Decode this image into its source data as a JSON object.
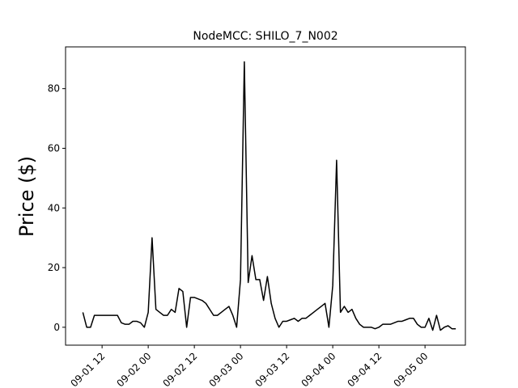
{
  "chart_data": {
    "type": "line",
    "title": "NodeMCC: SHILO_7_N002",
    "y_label": "Price ($)",
    "x": [
      "09-01 07",
      "09-01 08",
      "09-01 09",
      "09-01 10",
      "09-01 11",
      "09-01 12",
      "09-01 13",
      "09-01 14",
      "09-01 15",
      "09-01 16",
      "09-01 17",
      "09-01 18",
      "09-01 19",
      "09-01 20",
      "09-01 21",
      "09-01 22",
      "09-01 23",
      "09-02 00",
      "09-02 01",
      "09-02 02",
      "09-02 03",
      "09-02 04",
      "09-02 05",
      "09-02 06",
      "09-02 07",
      "09-02 08",
      "09-02 09",
      "09-02 10",
      "09-02 11",
      "09-02 12",
      "09-02 13",
      "09-02 14",
      "09-02 15",
      "09-02 16",
      "09-02 17",
      "09-02 18",
      "09-02 19",
      "09-02 20",
      "09-02 21",
      "09-02 22",
      "09-02 23",
      "09-03 00",
      "09-03 01",
      "09-03 02",
      "09-03 03",
      "09-03 04",
      "09-03 05",
      "09-03 06",
      "09-03 07",
      "09-03 08",
      "09-03 09",
      "09-03 10",
      "09-03 11",
      "09-03 12",
      "09-03 13",
      "09-03 14",
      "09-03 15",
      "09-03 16",
      "09-03 17",
      "09-03 18",
      "09-03 19",
      "09-03 20",
      "09-03 21",
      "09-03 22",
      "09-03 23",
      "09-04 00",
      "09-04 01",
      "09-04 02",
      "09-04 03",
      "09-04 04",
      "09-04 05",
      "09-04 06",
      "09-04 07",
      "09-04 08",
      "09-04 09",
      "09-04 10",
      "09-04 11",
      "09-04 12",
      "09-04 13",
      "09-04 14",
      "09-04 15",
      "09-04 16",
      "09-04 17",
      "09-04 18",
      "09-04 19",
      "09-04 20",
      "09-04 21",
      "09-04 22",
      "09-04 23",
      "09-05 00",
      "09-05 01",
      "09-05 02",
      "09-05 03",
      "09-05 04",
      "09-05 05",
      "09-05 06",
      "09-05 07",
      "09-05 08"
    ],
    "series": [
      {
        "color": "#000000",
        "values": [
          5,
          0,
          0,
          4,
          4,
          4,
          4,
          4,
          4,
          4,
          1.5,
          1,
          1,
          2,
          2,
          1.5,
          0,
          5,
          30,
          6,
          5,
          4,
          4,
          6,
          5,
          13,
          12,
          0,
          10,
          10,
          9.5,
          9,
          8,
          6,
          4,
          4,
          5,
          6,
          7,
          4,
          0,
          16,
          89,
          15,
          24,
          16,
          16,
          9,
          17,
          8,
          3,
          0,
          2,
          2,
          2.5,
          3,
          2,
          3,
          3,
          4,
          5,
          6,
          7,
          8,
          0,
          14,
          56,
          5,
          7,
          5,
          6,
          3,
          1,
          0,
          0,
          0,
          -0.5,
          0,
          1,
          1,
          1,
          1.5,
          2,
          2,
          2.5,
          3,
          3,
          1,
          0,
          0,
          3,
          -1,
          4,
          -1,
          0,
          0.5,
          -0.5,
          -0.5
        ]
      }
    ],
    "xlim": [
      "09-01 02:30",
      "09-05 10:30"
    ],
    "xticks": [
      "09-01 12",
      "09-02 00",
      "09-02 12",
      "09-03 00",
      "09-03 12",
      "09-04 00",
      "09-04 12",
      "09-05 00"
    ],
    "ylim": [
      -6,
      94
    ],
    "yticks": [
      0,
      20,
      40,
      60,
      80
    ]
  }
}
